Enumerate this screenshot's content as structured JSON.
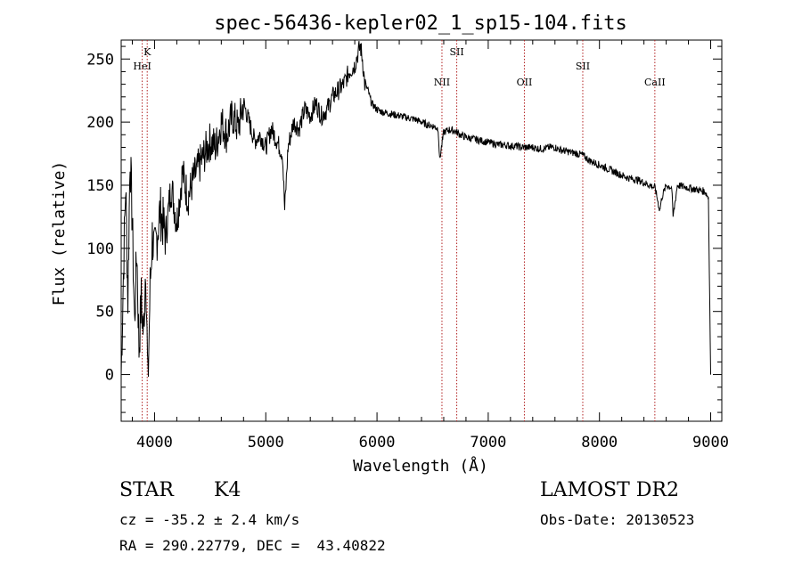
{
  "chart_data": {
    "type": "line",
    "title": "spec-56436-kepler02_1_sp15-104.fits",
    "xlabel": "Wavelength (Å)",
    "ylabel": "Flux (relative)",
    "xlim": [
      3700,
      9100
    ],
    "ylim": [
      -37,
      265
    ],
    "xticks": [
      4000,
      5000,
      6000,
      7000,
      8000,
      9000
    ],
    "yticks": [
      0,
      50,
      100,
      150,
      200,
      250
    ],
    "grid": false,
    "line_color": "#000000",
    "marker_color": "#b22222",
    "series": [
      {
        "x": [
          3700,
          3720,
          3740,
          3760,
          3780,
          3800,
          3820,
          3840,
          3860,
          3880,
          3900,
          3920,
          3940,
          3960,
          3980,
          4000,
          4050,
          4100,
          4150,
          4200,
          4250,
          4300,
          4350,
          4400,
          4450,
          4500,
          4550,
          4600,
          4650,
          4700,
          4750,
          4800,
          4850,
          4900,
          4950,
          5000,
          5050,
          5100,
          5150,
          5170,
          5200,
          5250,
          5300,
          5350,
          5400,
          5450,
          5500,
          5550,
          5600,
          5650,
          5700,
          5750,
          5800,
          5830,
          5850,
          5870,
          5890,
          5920,
          5950,
          6000,
          6050,
          6100,
          6150,
          6200,
          6250,
          6300,
          6350,
          6400,
          6450,
          6500,
          6550,
          6563,
          6600,
          6650,
          6700,
          6750,
          6800,
          6850,
          6900,
          6950,
          7000,
          7050,
          7100,
          7150,
          7200,
          7250,
          7300,
          7350,
          7400,
          7450,
          7500,
          7550,
          7600,
          7650,
          7700,
          7750,
          7800,
          7850,
          7900,
          7950,
          8000,
          8050,
          8100,
          8150,
          8200,
          8250,
          8300,
          8350,
          8400,
          8450,
          8500,
          8542,
          8560,
          8600,
          8650,
          8662,
          8700,
          8750,
          8800,
          8850,
          8900,
          8950,
          8980,
          9000
        ],
        "y": [
          0,
          80,
          150,
          60,
          175,
          120,
          40,
          100,
          20,
          60,
          30,
          90,
          -10,
          70,
          110,
          95,
          130,
          110,
          150,
          120,
          160,
          140,
          155,
          165,
          175,
          185,
          180,
          200,
          190,
          205,
          195,
          215,
          200,
          185,
          190,
          180,
          195,
          185,
          175,
          130,
          180,
          200,
          195,
          210,
          205,
          215,
          205,
          210,
          220,
          225,
          230,
          240,
          245,
          255,
          260,
          250,
          230,
          225,
          215,
          210,
          208,
          207,
          206,
          205,
          204,
          203,
          202,
          200,
          198,
          197,
          195,
          170,
          192,
          194,
          193,
          190,
          188,
          187,
          186,
          185,
          184,
          183,
          182,
          182,
          181,
          181,
          180,
          180,
          180,
          179,
          179,
          180,
          180,
          178,
          177,
          176,
          175,
          174,
          170,
          168,
          166,
          164,
          162,
          160,
          158,
          156,
          155,
          154,
          152,
          150,
          148,
          130,
          140,
          150,
          148,
          125,
          150,
          149,
          148,
          147,
          146,
          145,
          140,
          0
        ]
      }
    ],
    "line_markers": [
      {
        "label": "K",
        "x": 3934,
        "label_row": 0
      },
      {
        "label": "HeI",
        "x": 3889,
        "label_row": 1
      },
      {
        "label": "NII",
        "x": 6584,
        "label_row": 2
      },
      {
        "label": "SII",
        "x": 6717,
        "label_row": 0
      },
      {
        "label": "OII",
        "x": 7325,
        "label_row": 2
      },
      {
        "label": "SII",
        "x": 7850,
        "label_row": 1
      },
      {
        "label": "CaII",
        "x": 8498,
        "label_row": 2
      }
    ]
  },
  "info": {
    "star_class": "STAR",
    "subclass": "K4",
    "survey": "LAMOST DR2",
    "cz": "cz = -35.2 ± 2.4 km/s",
    "obs_date": "Obs-Date: 20130523",
    "coords": "RA = 290.22779, DEC =  43.40822"
  }
}
